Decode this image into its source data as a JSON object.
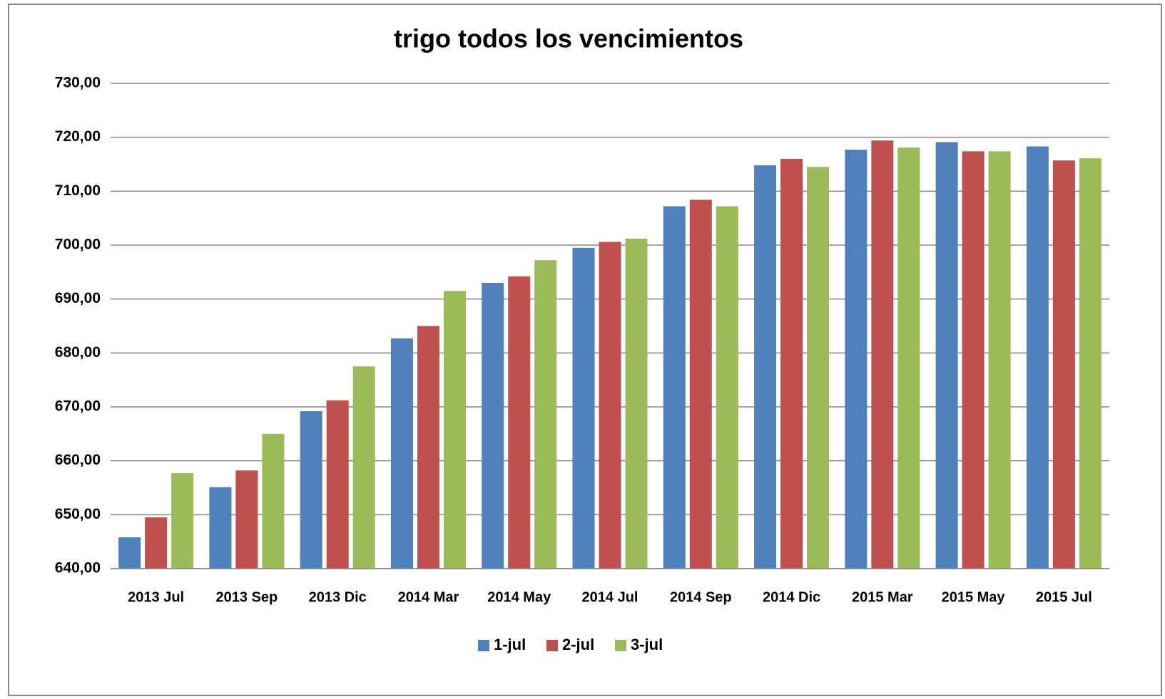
{
  "chart_data": {
    "type": "bar",
    "title": "trigo todos los vencimientos",
    "categories": [
      "2013 Jul",
      "2013 Sep",
      "2013 Dic",
      "2014 Mar",
      "2014 May",
      "2014 Jul",
      "2014 Sep",
      "2014 Dic",
      "2015 Mar",
      "2015 May",
      "2015 Jul"
    ],
    "series": [
      {
        "name": "1-jul",
        "color": "#4f81bd",
        "values": [
          645.8,
          655.1,
          669.2,
          682.7,
          693.0,
          699.5,
          707.2,
          714.8,
          717.7,
          719.1,
          718.3
        ]
      },
      {
        "name": "2-jul",
        "color": "#c0504d",
        "values": [
          649.5,
          658.2,
          671.2,
          685.0,
          694.2,
          700.6,
          708.4,
          716.0,
          719.4,
          717.4,
          715.7
        ]
      },
      {
        "name": "3-jul",
        "color": "#9bbb59",
        "values": [
          657.7,
          665.0,
          677.5,
          691.5,
          697.2,
          701.2,
          707.2,
          714.5,
          718.1,
          717.4,
          716.1
        ]
      }
    ],
    "ylim": [
      640,
      730
    ],
    "yticks": [
      {
        "value": 640,
        "label": "640,00"
      },
      {
        "value": 650,
        "label": "650,00"
      },
      {
        "value": 660,
        "label": "660,00"
      },
      {
        "value": 670,
        "label": "670,00"
      },
      {
        "value": 680,
        "label": "680,00"
      },
      {
        "value": 690,
        "label": "690,00"
      },
      {
        "value": 700,
        "label": "700,00"
      },
      {
        "value": 710,
        "label": "710,00"
      },
      {
        "value": 720,
        "label": "720,00"
      },
      {
        "value": 730,
        "label": "730,00"
      }
    ],
    "grid": true,
    "legend": "bottom"
  }
}
